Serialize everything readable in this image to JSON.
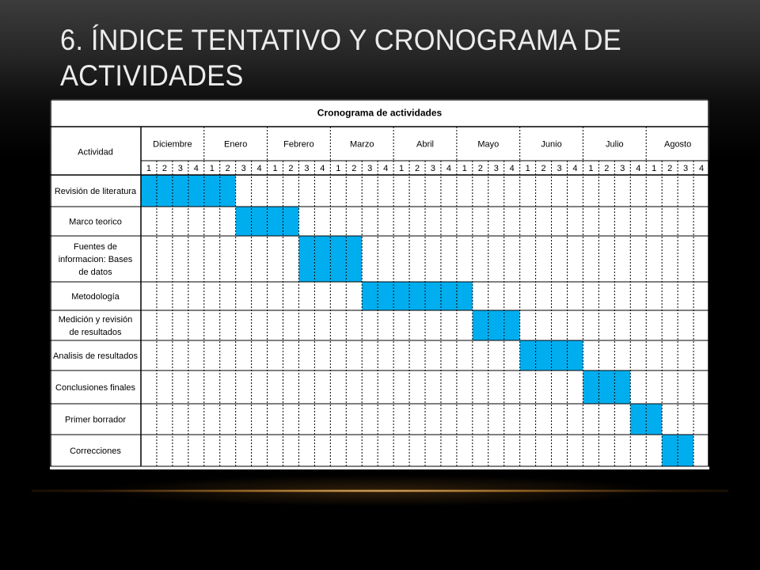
{
  "slide": {
    "title": "6. Índice tentativo y cronograma de actividades"
  },
  "schedule": {
    "title": "Cronograma de actividades",
    "activity_header": "Actividad",
    "months": [
      "Diciembre",
      "Enero",
      "Febrero",
      "Marzo",
      "Abril",
      "Mayo",
      "Junio",
      "Julio",
      "Agosto"
    ],
    "weeks": [
      "1",
      "2",
      "3",
      "4"
    ],
    "fill_color": "#00aeef",
    "activities": [
      {
        "label": [
          "Revisión de literatura"
        ],
        "start": 0,
        "end": 5
      },
      {
        "label": [
          "Marco teorico"
        ],
        "start": 6,
        "end": 9
      },
      {
        "label": [
          "Fuentes de",
          "informacion: Bases",
          "de datos"
        ],
        "start": 10,
        "end": 13
      },
      {
        "label": [
          "Metodología"
        ],
        "start": 14,
        "end": 20
      },
      {
        "label": [
          "Medición y revisión",
          "de resultados"
        ],
        "start": 21,
        "end": 23
      },
      {
        "label": [
          "Analisis de resultados"
        ],
        "start": 24,
        "end": 27
      },
      {
        "label": [
          "Conclusiones finales"
        ],
        "start": 28,
        "end": 30
      },
      {
        "label": [
          "Primer borrador"
        ],
        "start": 31,
        "end": 32
      },
      {
        "label": [
          "Correcciones"
        ],
        "start": 33,
        "end": 34
      }
    ]
  }
}
